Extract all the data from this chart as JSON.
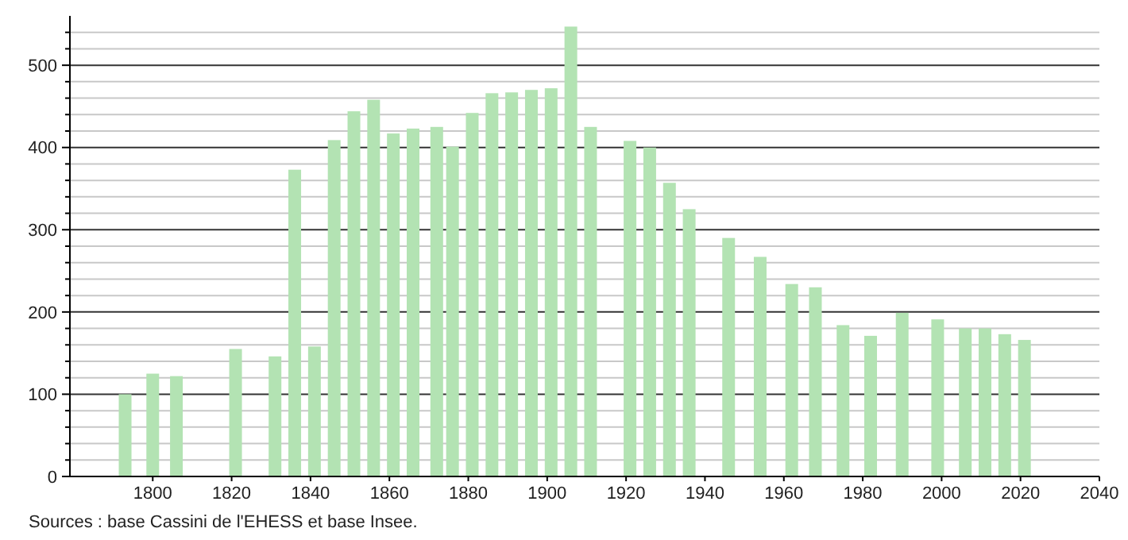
{
  "chart_data": {
    "type": "bar",
    "x": [
      1793,
      1800,
      1806,
      1821,
      1831,
      1836,
      1841,
      1846,
      1851,
      1856,
      1861,
      1866,
      1872,
      1876,
      1881,
      1886,
      1891,
      1896,
      1901,
      1906,
      1911,
      1921,
      1926,
      1931,
      1936,
      1946,
      1954,
      1962,
      1968,
      1975,
      1982,
      1990,
      1999,
      2006,
      2011,
      2016,
      2021
    ],
    "values": [
      100,
      125,
      122,
      155,
      146,
      373,
      158,
      409,
      444,
      458,
      417,
      423,
      425,
      401,
      442,
      466,
      467,
      470,
      472,
      547,
      425,
      408,
      400,
      357,
      325,
      290,
      267,
      234,
      230,
      184,
      171,
      199,
      191,
      180,
      180,
      173,
      166
    ],
    "color": "#b3e3b3",
    "xlim": [
      1779,
      2040
    ],
    "xticks": [
      1800,
      1820,
      1840,
      1860,
      1880,
      1900,
      1920,
      1940,
      1960,
      1980,
      2000,
      2020,
      2040
    ],
    "ylim": [
      0,
      560
    ],
    "yticks": [
      0,
      {
        "value": 20,
        "label": null
      },
      {
        "value": 40,
        "label": null
      },
      {
        "value": 60,
        "label": null
      },
      {
        "value": 80,
        "label": null
      },
      100,
      {
        "value": 120,
        "label": null
      },
      {
        "value": 140,
        "label": null
      },
      {
        "value": 160,
        "label": null
      },
      {
        "value": 180,
        "label": null
      },
      200,
      {
        "value": 220,
        "label": null
      },
      {
        "value": 240,
        "label": null
      },
      {
        "value": 260,
        "label": null
      },
      {
        "value": 280,
        "label": null
      },
      300,
      {
        "value": 320,
        "label": null
      },
      {
        "value": 340,
        "label": null
      },
      {
        "value": 360,
        "label": null
      },
      {
        "value": 380,
        "label": null
      },
      400,
      {
        "value": 420,
        "label": null
      },
      {
        "value": 440,
        "label": null
      },
      {
        "value": 460,
        "label": null
      },
      {
        "value": 480,
        "label": null
      },
      500,
      {
        "value": 520,
        "label": null
      },
      {
        "value": 540,
        "label": null
      }
    ],
    "grid": "y",
    "annotations": [
      "Sources : base Cassini de l'EHESS et base Insee."
    ]
  }
}
